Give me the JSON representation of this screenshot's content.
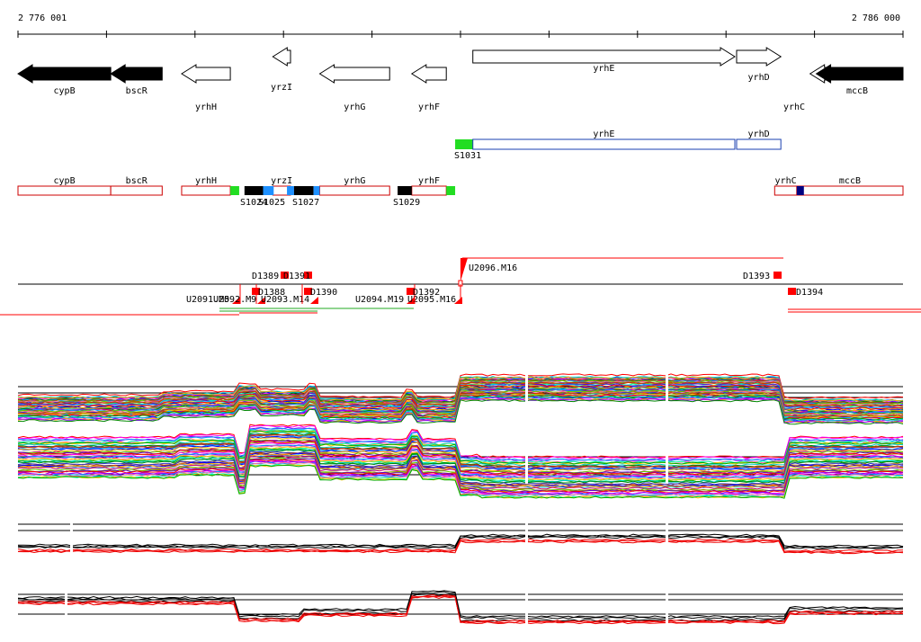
{
  "ruler": {
    "start_label": "2 776 001",
    "end_label": "2 786 000",
    "start_bp": 2776001,
    "end_bp": 2786000
  },
  "colors": {
    "gene_filled": "#000000",
    "gene_outline": "#000000",
    "transcript_outline": "#1a3fb0",
    "operon_outline": "#cc0000",
    "promoter": "#22dd22",
    "terminator": "#000000",
    "blue_site": "#1e90ff",
    "navy_site": "#000080",
    "marker": "#ff0000",
    "line": "#ff0000",
    "green_line": "#22aa22"
  },
  "genes": [
    {
      "label": "cypB",
      "start": 2776001,
      "end": 2777049,
      "strand": "-",
      "filled": true
    },
    {
      "label": "bscR",
      "start": 2777049,
      "end": 2777630,
      "strand": "-",
      "filled": true
    },
    {
      "label": "yrhH",
      "start": 2777850,
      "end": 2778400,
      "strand": "-",
      "filled": false
    },
    {
      "label": "yrzI",
      "start": 2778880,
      "end": 2779080,
      "strand": "-",
      "filled": false
    },
    {
      "label": "yrhG",
      "start": 2779410,
      "end": 2780200,
      "strand": "-",
      "filled": false
    },
    {
      "label": "yrhF",
      "start": 2780450,
      "end": 2780840,
      "strand": "-",
      "filled": false
    },
    {
      "label": "yrhE",
      "start": 2781140,
      "end": 2784100,
      "strand": "+",
      "filled": false
    },
    {
      "label": "yrhD",
      "start": 2784120,
      "end": 2784620,
      "strand": "+",
      "filled": false
    },
    {
      "label": "yrhC",
      "start": 2784950,
      "end": 2785200,
      "strand": "-",
      "filled": false
    },
    {
      "label": "mccB",
      "start": 2785020,
      "end": 2786000,
      "strand": "-",
      "filled": true
    }
  ],
  "transcripts": [
    {
      "label": "yrhE",
      "start": 2781140,
      "end": 2784100
    },
    {
      "label": "yrhD",
      "start": 2784120,
      "end": 2784620
    }
  ],
  "transcript_promoter": {
    "label": "S1031",
    "start": 2780940,
    "end": 2781140
  },
  "operons": [
    {
      "label": "cypB",
      "start": 2776001,
      "end": 2777049
    },
    {
      "label": "bscR",
      "start": 2777049,
      "end": 2777630
    },
    {
      "label": "yrhH",
      "start": 2777850,
      "end": 2778400
    },
    {
      "label": "yrzI",
      "start": 2778880,
      "end": 2779080
    },
    {
      "label": "yrhG",
      "start": 2779410,
      "end": 2780200
    },
    {
      "label": "yrhF",
      "start": 2780450,
      "end": 2780840
    },
    {
      "label": "yrhC",
      "start": 2784550,
      "end": 2784800
    },
    {
      "label": "mccB",
      "start": 2784800,
      "end": 2786000
    }
  ],
  "sites": [
    {
      "kind": "promoter",
      "start": 2778400,
      "end": 2778500
    },
    {
      "kind": "terminator",
      "start": 2778560,
      "end": 2778770
    },
    {
      "kind": "blue_site",
      "start": 2778770,
      "end": 2778890
    },
    {
      "kind": "blue_site",
      "start": 2779040,
      "end": 2779120
    },
    {
      "kind": "terminator",
      "start": 2779120,
      "end": 2779340
    },
    {
      "kind": "blue_site",
      "start": 2779340,
      "end": 2779410
    },
    {
      "kind": "terminator",
      "start": 2780290,
      "end": 2780450
    },
    {
      "kind": "promoter",
      "start": 2780840,
      "end": 2780940
    },
    {
      "kind": "navy_site",
      "start": 2784800,
      "end": 2784880
    }
  ],
  "site_labels": {
    "s1024": "S1024",
    "s1025": "S1025",
    "s1027": "S1027",
    "s1029": "S1029"
  },
  "upshifts": [
    {
      "label": "U2091.M5",
      "start": 2778310
    },
    {
      "label": "U2092.M9",
      "start": 2778670
    },
    {
      "label": "U2093.M14",
      "start": 2779360
    },
    {
      "label": "U2094.M19",
      "start": 2780390
    },
    {
      "label": "U2095.M16",
      "start": 2780900
    }
  ],
  "main_upshift": {
    "label": "U2096.M16",
    "start": 2781000
  },
  "downshifts": [
    {
      "label": "D1389",
      "start": 2778960
    },
    {
      "label": "D1391",
      "start": 2779250
    },
    {
      "label": "D1388",
      "start": 2778680
    },
    {
      "label": "D1390",
      "start": 2779250
    },
    {
      "label": "D1392",
      "start": 2780410
    },
    {
      "label": "D1393",
      "start": 2784560
    },
    {
      "label": "D1394",
      "start": 2784620
    }
  ]
}
